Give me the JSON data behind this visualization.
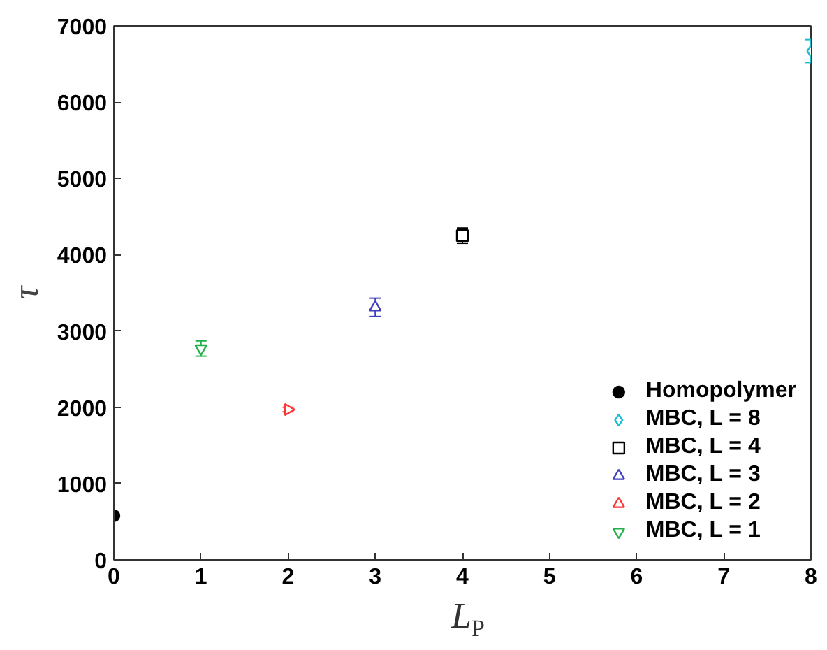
{
  "chart_data": {
    "type": "scatter",
    "xlabel": "L$_{P}$",
    "ylabel": "τ",
    "xlim": [
      0,
      8
    ],
    "xticks": [
      0,
      1,
      2,
      3,
      4,
      5,
      6,
      7,
      8
    ],
    "ylim": [
      0,
      7000
    ],
    "yticks": [
      0,
      1000,
      2000,
      3000,
      4000,
      5000,
      6000,
      7000
    ],
    "grid": false,
    "legend": "bottom right",
    "series": [
      {
        "name": "Homopolymer",
        "color": "#000000",
        "marker": "circle",
        "x": [
          0
        ],
        "values": [
          580
        ]
      },
      {
        "name": "MBC, L = 8",
        "color": "#17becf",
        "marker": "diamond",
        "x": [
          8
        ],
        "values": [
          6670
        ],
        "errors": [
          150
        ]
      },
      {
        "name": "MBC, L = 4",
        "color": "#000000",
        "marker": "square",
        "x": [
          4
        ],
        "values": [
          4250
        ],
        "errors": [
          100
        ]
      },
      {
        "name": "MBC, L = 3",
        "color": "#3f3fbf",
        "marker": "triangle",
        "x": [
          3
        ],
        "values": [
          3310
        ],
        "errors": [
          120
        ]
      },
      {
        "name": "MBC, L = 2",
        "color": "#ff3333",
        "marker": "triangle-right",
        "x": [
          2
        ],
        "values": [
          1970
        ],
        "errors": [
          30
        ]
      },
      {
        "name": "MBC, L = 1",
        "color": "#22b04a",
        "marker": "triangle-down",
        "x": [
          1
        ],
        "values": [
          2770
        ],
        "errors": [
          100
        ]
      }
    ]
  }
}
